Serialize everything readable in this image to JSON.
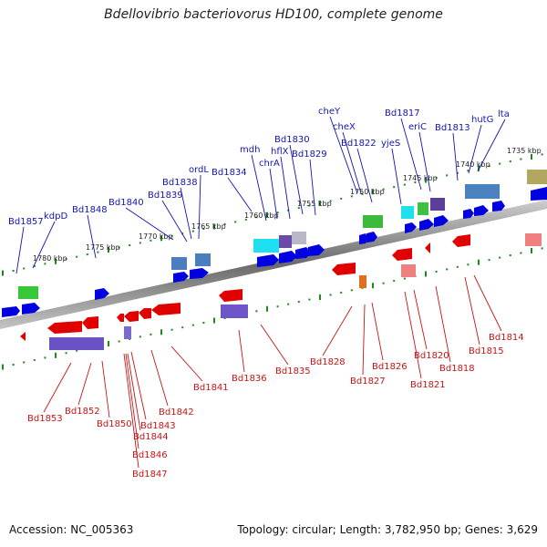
{
  "title": "Bdellovibrio bacteriovorus HD100, complete genome",
  "footer": {
    "accession": "Accession: NC_005363",
    "stats": "Topology: circular; Length: 3,782,950 bp; Genes: 3,629"
  },
  "scale_labels": [
    "1780 kbp",
    "1775 kbp",
    "1770 kbp",
    "1765 kbp",
    "1760 kbp",
    "1755 kbp",
    "1750 kbp",
    "1745 kbp",
    "1740 kbp",
    "1735 kbp"
  ],
  "top_genes": [
    "Bd1857",
    "kdpD",
    "Bd1848",
    "Bd1840",
    "Bd1839",
    "Bd1838",
    "ordL",
    "Bd1834",
    "mdh",
    "chrA",
    "hflX",
    "Bd1830",
    "Bd1829",
    "cheY",
    "cheX",
    "Bd1822",
    "yjeS",
    "Bd1817",
    "eriC",
    "Bd1813",
    "hutG",
    "lta"
  ],
  "bottom_genes": [
    "Bd1853",
    "Bd1852",
    "Bd1850",
    "Bd1843",
    "Bd1844",
    "Bd1846",
    "Bd1847",
    "Bd1842",
    "Bd1841",
    "Bd1836",
    "Bd1835",
    "Bd1828",
    "Bd1827",
    "Bd1826",
    "Bd1821",
    "Bd1820",
    "Bd1818",
    "Bd1815",
    "Bd1814"
  ],
  "colors": {
    "forward_gene": "#0000e0",
    "reverse_gene": "#e00000",
    "top_label": "#1414b4",
    "bottom_label": "#c81414",
    "backbone": "#777777",
    "scale_tick": "#1a8a1a"
  }
}
